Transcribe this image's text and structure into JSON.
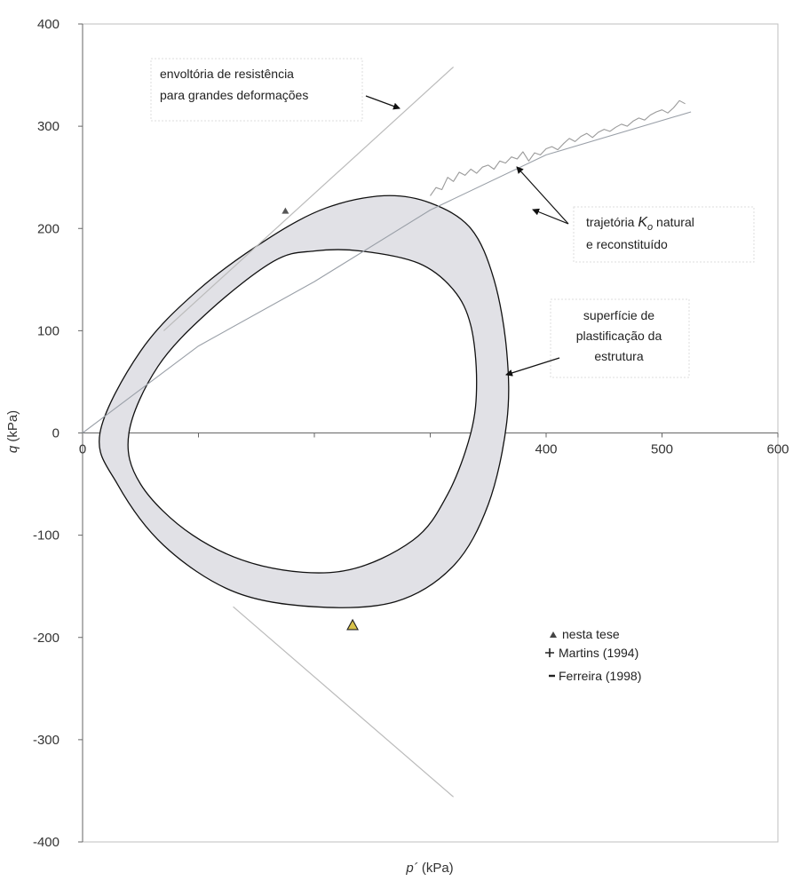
{
  "chart_data": {
    "type": "line",
    "xlabel_main": "p´",
    "xlabel_unit": "(kPa)",
    "ylabel_main": "q",
    "ylabel_unit": "(kPa)",
    "xlim": [
      0,
      600
    ],
    "ylim": [
      -400,
      400
    ],
    "x_ticks": [
      0,
      100,
      200,
      300,
      400,
      500,
      600
    ],
    "x_tick_labels": [
      "0",
      "",
      "",
      "",
      "400",
      "500",
      "600"
    ],
    "y_ticks": [
      -400,
      -300,
      -200,
      -100,
      0,
      100,
      200,
      300,
      400
    ],
    "y_tick_labels": [
      "-400",
      "-300",
      "-200",
      "-100",
      "0",
      "100",
      "200",
      "300",
      "400"
    ],
    "grid": false,
    "colors": {
      "envelope": "#bbbbbb",
      "k0_line": "#9aa0a8",
      "k0_noisy": "#9a9a9a",
      "band_fill": "#e1e1e6",
      "band_stroke": "#111111",
      "axis": "#666666",
      "frame": "#bfbfbf",
      "marker_fill": "#d8c24a"
    },
    "series": [
      {
        "key": "envelope_upper",
        "points": [
          [
            70,
            100
          ],
          [
            320,
            358
          ]
        ]
      },
      {
        "key": "envelope_lower",
        "points": [
          [
            130,
            -170
          ],
          [
            320,
            -356
          ]
        ]
      },
      {
        "key": "k0_reconstituido",
        "points": [
          [
            0,
            0
          ],
          [
            100,
            85
          ],
          [
            200,
            148
          ],
          [
            300,
            218
          ],
          [
            400,
            272
          ],
          [
            525,
            314
          ]
        ]
      },
      {
        "key": "k0_natural",
        "points": [
          [
            300,
            232
          ],
          [
            305,
            240
          ],
          [
            310,
            238
          ],
          [
            315,
            250
          ],
          [
            320,
            246
          ],
          [
            325,
            255
          ],
          [
            330,
            252
          ],
          [
            335,
            258
          ],
          [
            340,
            254
          ],
          [
            345,
            260
          ],
          [
            350,
            262
          ],
          [
            355,
            258
          ],
          [
            360,
            266
          ],
          [
            365,
            264
          ],
          [
            370,
            270
          ],
          [
            375,
            268
          ],
          [
            380,
            275
          ],
          [
            385,
            266
          ],
          [
            390,
            274
          ],
          [
            395,
            272
          ],
          [
            400,
            278
          ],
          [
            405,
            280
          ],
          [
            410,
            277
          ],
          [
            415,
            283
          ],
          [
            420,
            288
          ],
          [
            425,
            285
          ],
          [
            430,
            290
          ],
          [
            435,
            293
          ],
          [
            440,
            289
          ],
          [
            445,
            294
          ],
          [
            450,
            297
          ],
          [
            455,
            295
          ],
          [
            460,
            299
          ],
          [
            465,
            302
          ],
          [
            470,
            300
          ],
          [
            475,
            305
          ],
          [
            480,
            308
          ],
          [
            485,
            306
          ],
          [
            490,
            311
          ],
          [
            495,
            314
          ],
          [
            500,
            316
          ],
          [
            505,
            313
          ],
          [
            510,
            318
          ],
          [
            515,
            325
          ],
          [
            520,
            322
          ]
        ]
      }
    ],
    "band": {
      "outer": [
        [
          15,
          0
        ],
        [
          50,
          80
        ],
        [
          100,
          140
        ],
        [
          160,
          190
        ],
        [
          210,
          220
        ],
        [
          260,
          232
        ],
        [
          300,
          225
        ],
        [
          335,
          200
        ],
        [
          355,
          150
        ],
        [
          366,
          80
        ],
        [
          366,
          10
        ],
        [
          350,
          -70
        ],
        [
          320,
          -130
        ],
        [
          270,
          -165
        ],
        [
          200,
          -170
        ],
        [
          130,
          -155
        ],
        [
          70,
          -110
        ],
        [
          30,
          -50
        ]
      ],
      "inner": [
        [
          40,
          0
        ],
        [
          65,
          65
        ],
        [
          110,
          120
        ],
        [
          165,
          168
        ],
        [
          200,
          178
        ],
        [
          240,
          178
        ],
        [
          290,
          166
        ],
        [
          320,
          140
        ],
        [
          335,
          105
        ],
        [
          340,
          50
        ],
        [
          335,
          0
        ],
        [
          315,
          -60
        ],
        [
          285,
          -105
        ],
        [
          225,
          -135
        ],
        [
          155,
          -130
        ],
        [
          95,
          -100
        ],
        [
          50,
          -50
        ]
      ]
    },
    "markers": {
      "nesta_tese": [
        [
          233,
          -188
        ]
      ],
      "martins_1994": [
        [
          175,
          217
        ]
      ],
      "ferreira_1998": []
    },
    "annotations": {
      "envoltoria_line1": "envoltória de resistência",
      "envoltoria_line2": "para grandes deformações",
      "trajetoria_prefix": "trajetória ",
      "trajetoria_k": "K",
      "trajetoria_sub": "o",
      "trajetoria_suffix": " natural",
      "trajetoria_line2": "e reconstituído",
      "superficie_line1": "superfície de",
      "superficie_line2": "plastificação da",
      "superficie_line3": "estrutura"
    },
    "legend": {
      "placement": "bottom-right",
      "items": [
        {
          "symbol": "triangle",
          "label": "nesta tese"
        },
        {
          "symbol": "plus",
          "label": "Martins (1994)"
        },
        {
          "symbol": "dash",
          "label": "Ferreira (1998)"
        }
      ]
    }
  }
}
